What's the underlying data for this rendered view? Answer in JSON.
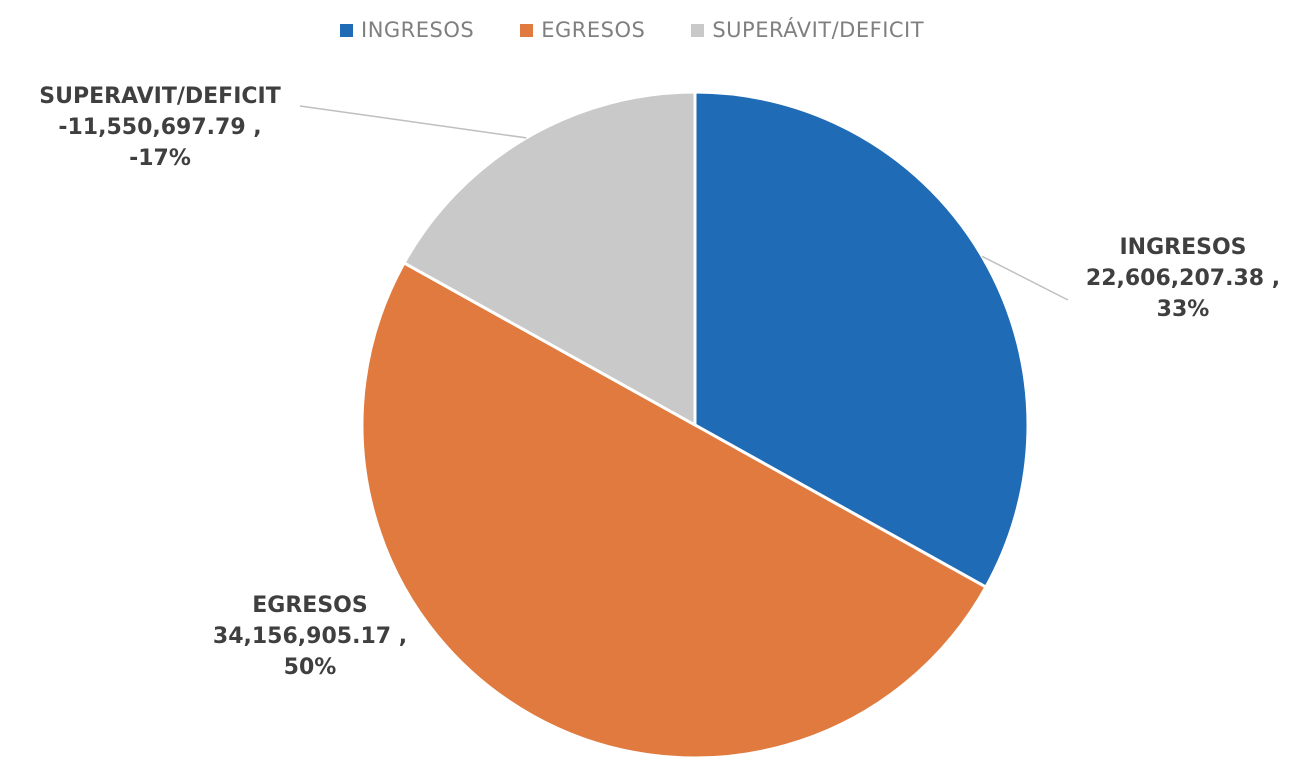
{
  "chart_data": {
    "type": "pie",
    "legend_position": "top",
    "slices": [
      {
        "name": "INGRESOS",
        "value": 22606207.38,
        "value_label": "22,606,207.38 ,",
        "percent_label": "33%",
        "color": "#1f6bb5"
      },
      {
        "name": "EGRESOS",
        "value": 34156905.17,
        "value_label": "34,156,905.17 ,",
        "percent_label": "50%",
        "color": "#e07a3f"
      },
      {
        "name": "SUPERÁVIT/DEFICIT",
        "label_name": "SUPERAVIT/DEFICIT",
        "value": -11550697.79,
        "value_label": "-11,550,697.79 ,",
        "percent_label": "-17%",
        "color": "#c9c9c9"
      }
    ]
  }
}
